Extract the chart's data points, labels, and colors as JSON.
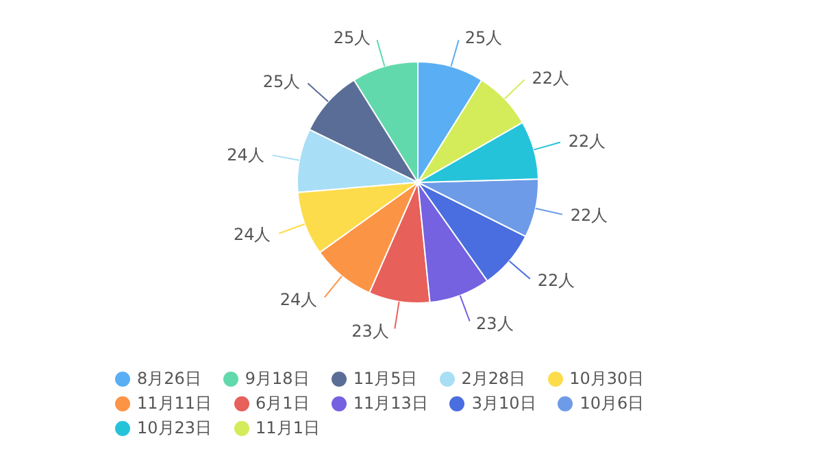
{
  "chart_data": {
    "type": "pie",
    "categories": [
      "8月26日",
      "9月18日",
      "11月5日",
      "2月28日",
      "10月30日",
      "11月11日",
      "6月1日",
      "11月13日",
      "3月10日",
      "10月6日",
      "10月23日",
      "11月1日"
    ],
    "values": [
      25,
      25,
      25,
      24,
      24,
      24,
      23,
      23,
      22,
      22,
      22,
      22
    ],
    "value_labels": [
      "25人",
      "25人",
      "25人",
      "24人",
      "24人",
      "24人",
      "23人",
      "23人",
      "22人",
      "22人",
      "22人",
      "22人"
    ],
    "colors": [
      "#5aaef3",
      "#62d9ac",
      "#5a6d96",
      "#a8def6",
      "#fddc4b",
      "#fc9446",
      "#e7605a",
      "#7462e0",
      "#4a6ee0",
      "#6d9be8",
      "#25c3da",
      "#d4ec59"
    ],
    "legend": "bottom"
  }
}
